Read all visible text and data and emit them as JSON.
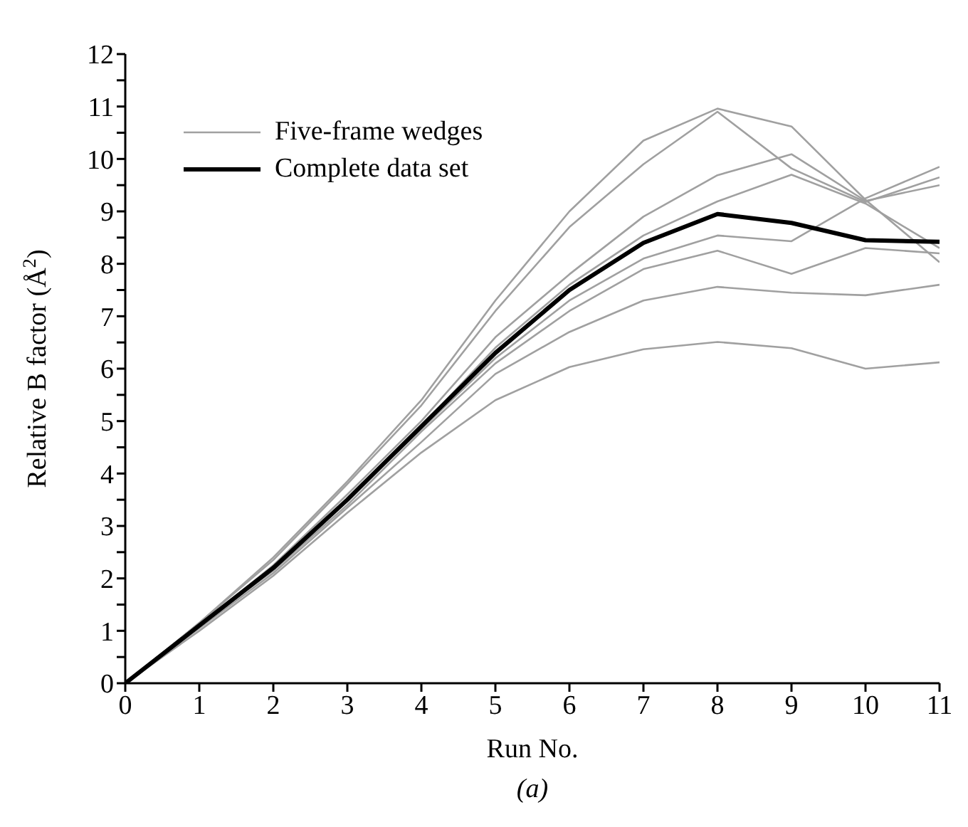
{
  "chart_data": {
    "type": "line",
    "xlabel": "Run No.",
    "ylabel": "Relative B factor (Å$^{2}$)",
    "annotations": [
      "(a)"
    ],
    "x": [
      0,
      1,
      2,
      3,
      4,
      5,
      6,
      7,
      8,
      9,
      10,
      11
    ],
    "xlim": [
      0,
      11
    ],
    "xticks": [
      0,
      1,
      2,
      3,
      4,
      5,
      6,
      7,
      8,
      9,
      10,
      11
    ],
    "ylim": [
      0,
      12
    ],
    "yticks": [
      0,
      {
        "value": 0.5,
        "label": null
      },
      1,
      {
        "value": 1.5,
        "label": null
      },
      2,
      {
        "value": 2.5,
        "label": null
      },
      3,
      {
        "value": 3.5,
        "label": null
      },
      4,
      {
        "value": 4.5,
        "label": null
      },
      5,
      {
        "value": 5.5,
        "label": null
      },
      6,
      {
        "value": 6.5,
        "label": null
      },
      7,
      {
        "value": 7.5,
        "label": null
      },
      8,
      {
        "value": 8.5,
        "label": null
      },
      9,
      {
        "value": 9.5,
        "label": null
      },
      10,
      {
        "value": 10.5,
        "label": null
      },
      11,
      {
        "value": 11.5,
        "label": null
      },
      12
    ],
    "grid": false,
    "legend": "top left",
    "marker": "none",
    "line_style": "solid",
    "series": [
      {
        "name": "Five-frame wedges",
        "color": "#a0a0a0",
        "values": [
          0,
          1.15,
          2.4,
          3.85,
          5.4,
          7.3,
          9.0,
          10.35,
          10.96,
          10.62,
          9.22,
          8.03
        ]
      },
      {
        "color": "#a0a0a0",
        "values": [
          0,
          1.15,
          2.35,
          3.8,
          5.3,
          7.1,
          8.7,
          9.9,
          10.9,
          9.82,
          9.18,
          9.65
        ]
      },
      {
        "color": "#a0a0a0",
        "values": [
          0,
          1.1,
          2.25,
          3.6,
          5.0,
          6.6,
          7.8,
          8.9,
          9.69,
          10.09,
          9.2,
          9.5
        ]
      },
      {
        "color": "#a0a0a0",
        "values": [
          0,
          1.1,
          2.2,
          3.5,
          4.9,
          6.4,
          7.6,
          8.54,
          9.19,
          9.7,
          9.15,
          8.3
        ]
      },
      {
        "color": "#a0a0a0",
        "values": [
          0,
          1.1,
          2.2,
          3.5,
          4.85,
          6.2,
          7.3,
          8.1,
          8.54,
          8.43,
          9.25,
          9.85
        ]
      },
      {
        "color": "#a0a0a0",
        "values": [
          0,
          1.1,
          2.15,
          3.4,
          4.8,
          6.1,
          7.1,
          7.9,
          8.25,
          7.81,
          8.3,
          8.2
        ]
      },
      {
        "color": "#a0a0a0",
        "values": [
          0,
          1.05,
          2.1,
          3.35,
          4.6,
          5.9,
          6.7,
          7.3,
          7.56,
          7.45,
          7.4,
          7.6
        ]
      },
      {
        "color": "#a0a0a0",
        "values": [
          0,
          1.0,
          2.05,
          3.25,
          4.4,
          5.4,
          6.03,
          6.37,
          6.51,
          6.39,
          6.0,
          6.12
        ]
      },
      {
        "name": "Complete data set",
        "color": "#000000",
        "values": [
          0,
          1.1,
          2.2,
          3.5,
          4.9,
          6.3,
          7.5,
          8.4,
          8.95,
          8.78,
          8.45,
          8.42
        ]
      }
    ]
  }
}
